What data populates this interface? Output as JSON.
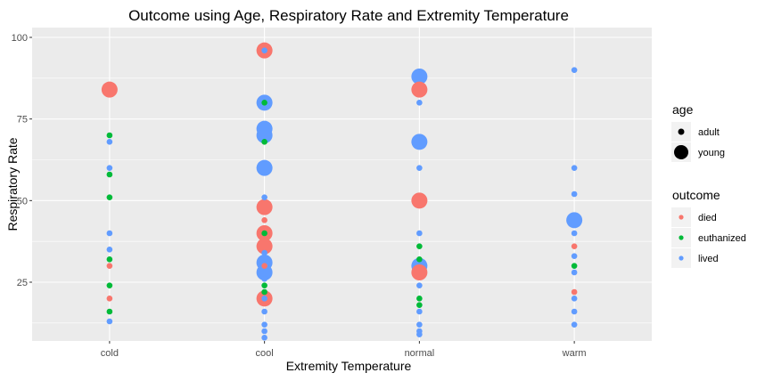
{
  "chart_data": {
    "type": "scatter",
    "title": "Outcome using Age, Respiratory Rate and Extremity Temperature",
    "xlabel": "Extremity Temperature",
    "ylabel": "Respiratory Rate",
    "categories": [
      "cold",
      "cool",
      "normal",
      "warm"
    ],
    "ylim": [
      7,
      103
    ],
    "yticks": [
      25,
      50,
      75,
      100
    ],
    "grid": true,
    "legend_position": "right",
    "legends": {
      "age": {
        "title": "age",
        "entries": [
          {
            "label": "adult",
            "size": "small"
          },
          {
            "label": "young",
            "size": "large"
          }
        ]
      },
      "outcome": {
        "title": "outcome",
        "entries": [
          {
            "label": "died",
            "color": "#F8766D"
          },
          {
            "label": "euthanized",
            "color": "#00BA38"
          },
          {
            "label": "lived",
            "color": "#619CFF"
          }
        ]
      }
    },
    "colors": {
      "died": "#F8766D",
      "euthanized": "#00BA38",
      "lived": "#619CFF"
    },
    "points": [
      {
        "x": "cold",
        "y": 84,
        "age": "young",
        "outcome": "died"
      },
      {
        "x": "cold",
        "y": 70,
        "age": "adult",
        "outcome": "euthanized"
      },
      {
        "x": "cold",
        "y": 68,
        "age": "adult",
        "outcome": "lived"
      },
      {
        "x": "cold",
        "y": 60,
        "age": "adult",
        "outcome": "lived"
      },
      {
        "x": "cold",
        "y": 58,
        "age": "adult",
        "outcome": "euthanized"
      },
      {
        "x": "cold",
        "y": 51,
        "age": "adult",
        "outcome": "euthanized"
      },
      {
        "x": "cold",
        "y": 40,
        "age": "adult",
        "outcome": "lived"
      },
      {
        "x": "cold",
        "y": 35,
        "age": "adult",
        "outcome": "lived"
      },
      {
        "x": "cold",
        "y": 32,
        "age": "adult",
        "outcome": "euthanized"
      },
      {
        "x": "cold",
        "y": 30,
        "age": "adult",
        "outcome": "died"
      },
      {
        "x": "cold",
        "y": 24,
        "age": "adult",
        "outcome": "euthanized"
      },
      {
        "x": "cold",
        "y": 20,
        "age": "adult",
        "outcome": "died"
      },
      {
        "x": "cold",
        "y": 16,
        "age": "adult",
        "outcome": "euthanized"
      },
      {
        "x": "cold",
        "y": 13,
        "age": "adult",
        "outcome": "lived"
      },
      {
        "x": "cool",
        "y": 96,
        "age": "young",
        "outcome": "died"
      },
      {
        "x": "cool",
        "y": 96,
        "age": "adult",
        "outcome": "lived"
      },
      {
        "x": "cool",
        "y": 80,
        "age": "young",
        "outcome": "lived"
      },
      {
        "x": "cool",
        "y": 80,
        "age": "adult",
        "outcome": "euthanized"
      },
      {
        "x": "cool",
        "y": 72,
        "age": "young",
        "outcome": "lived"
      },
      {
        "x": "cool",
        "y": 70,
        "age": "young",
        "outcome": "lived"
      },
      {
        "x": "cool",
        "y": 68,
        "age": "adult",
        "outcome": "euthanized"
      },
      {
        "x": "cool",
        "y": 60,
        "age": "young",
        "outcome": "lived"
      },
      {
        "x": "cool",
        "y": 51,
        "age": "adult",
        "outcome": "lived"
      },
      {
        "x": "cool",
        "y": 48,
        "age": "young",
        "outcome": "died"
      },
      {
        "x": "cool",
        "y": 44,
        "age": "adult",
        "outcome": "died"
      },
      {
        "x": "cool",
        "y": 40,
        "age": "young",
        "outcome": "died"
      },
      {
        "x": "cool",
        "y": 40,
        "age": "adult",
        "outcome": "euthanized"
      },
      {
        "x": "cool",
        "y": 36,
        "age": "young",
        "outcome": "died"
      },
      {
        "x": "cool",
        "y": 34,
        "age": "adult",
        "outcome": "lived"
      },
      {
        "x": "cool",
        "y": 31,
        "age": "young",
        "outcome": "lived"
      },
      {
        "x": "cool",
        "y": 30,
        "age": "adult",
        "outcome": "died"
      },
      {
        "x": "cool",
        "y": 28,
        "age": "young",
        "outcome": "lived"
      },
      {
        "x": "cool",
        "y": 26,
        "age": "adult",
        "outcome": "lived"
      },
      {
        "x": "cool",
        "y": 24,
        "age": "adult",
        "outcome": "euthanized"
      },
      {
        "x": "cool",
        "y": 22,
        "age": "adult",
        "outcome": "euthanized"
      },
      {
        "x": "cool",
        "y": 20,
        "age": "young",
        "outcome": "died"
      },
      {
        "x": "cool",
        "y": 20,
        "age": "adult",
        "outcome": "lived"
      },
      {
        "x": "cool",
        "y": 16,
        "age": "adult",
        "outcome": "lived"
      },
      {
        "x": "cool",
        "y": 12,
        "age": "adult",
        "outcome": "lived"
      },
      {
        "x": "cool",
        "y": 10,
        "age": "adult",
        "outcome": "lived"
      },
      {
        "x": "cool",
        "y": 8,
        "age": "adult",
        "outcome": "lived"
      },
      {
        "x": "normal",
        "y": 88,
        "age": "young",
        "outcome": "lived"
      },
      {
        "x": "normal",
        "y": 84,
        "age": "young",
        "outcome": "died"
      },
      {
        "x": "normal",
        "y": 80,
        "age": "adult",
        "outcome": "lived"
      },
      {
        "x": "normal",
        "y": 68,
        "age": "young",
        "outcome": "lived"
      },
      {
        "x": "normal",
        "y": 60,
        "age": "adult",
        "outcome": "lived"
      },
      {
        "x": "normal",
        "y": 50,
        "age": "young",
        "outcome": "died"
      },
      {
        "x": "normal",
        "y": 40,
        "age": "adult",
        "outcome": "lived"
      },
      {
        "x": "normal",
        "y": 36,
        "age": "adult",
        "outcome": "euthanized"
      },
      {
        "x": "normal",
        "y": 32,
        "age": "adult",
        "outcome": "euthanized"
      },
      {
        "x": "normal",
        "y": 30,
        "age": "young",
        "outcome": "lived"
      },
      {
        "x": "normal",
        "y": 28,
        "age": "young",
        "outcome": "died"
      },
      {
        "x": "normal",
        "y": 24,
        "age": "adult",
        "outcome": "lived"
      },
      {
        "x": "normal",
        "y": 20,
        "age": "adult",
        "outcome": "euthanized"
      },
      {
        "x": "normal",
        "y": 18,
        "age": "adult",
        "outcome": "euthanized"
      },
      {
        "x": "normal",
        "y": 16,
        "age": "adult",
        "outcome": "lived"
      },
      {
        "x": "normal",
        "y": 12,
        "age": "adult",
        "outcome": "lived"
      },
      {
        "x": "normal",
        "y": 10,
        "age": "adult",
        "outcome": "lived"
      },
      {
        "x": "normal",
        "y": 9,
        "age": "adult",
        "outcome": "lived"
      },
      {
        "x": "warm",
        "y": 90,
        "age": "adult",
        "outcome": "lived"
      },
      {
        "x": "warm",
        "y": 60,
        "age": "adult",
        "outcome": "lived"
      },
      {
        "x": "warm",
        "y": 52,
        "age": "adult",
        "outcome": "lived"
      },
      {
        "x": "warm",
        "y": 44,
        "age": "young",
        "outcome": "lived"
      },
      {
        "x": "warm",
        "y": 40,
        "age": "adult",
        "outcome": "lived"
      },
      {
        "x": "warm",
        "y": 36,
        "age": "adult",
        "outcome": "died"
      },
      {
        "x": "warm",
        "y": 33,
        "age": "adult",
        "outcome": "lived"
      },
      {
        "x": "warm",
        "y": 30,
        "age": "adult",
        "outcome": "euthanized"
      },
      {
        "x": "warm",
        "y": 28,
        "age": "adult",
        "outcome": "lived"
      },
      {
        "x": "warm",
        "y": 22,
        "age": "adult",
        "outcome": "died"
      },
      {
        "x": "warm",
        "y": 20,
        "age": "adult",
        "outcome": "lived"
      },
      {
        "x": "warm",
        "y": 16,
        "age": "adult",
        "outcome": "lived"
      },
      {
        "x": "warm",
        "y": 12,
        "age": "adult",
        "outcome": "lived"
      }
    ]
  }
}
